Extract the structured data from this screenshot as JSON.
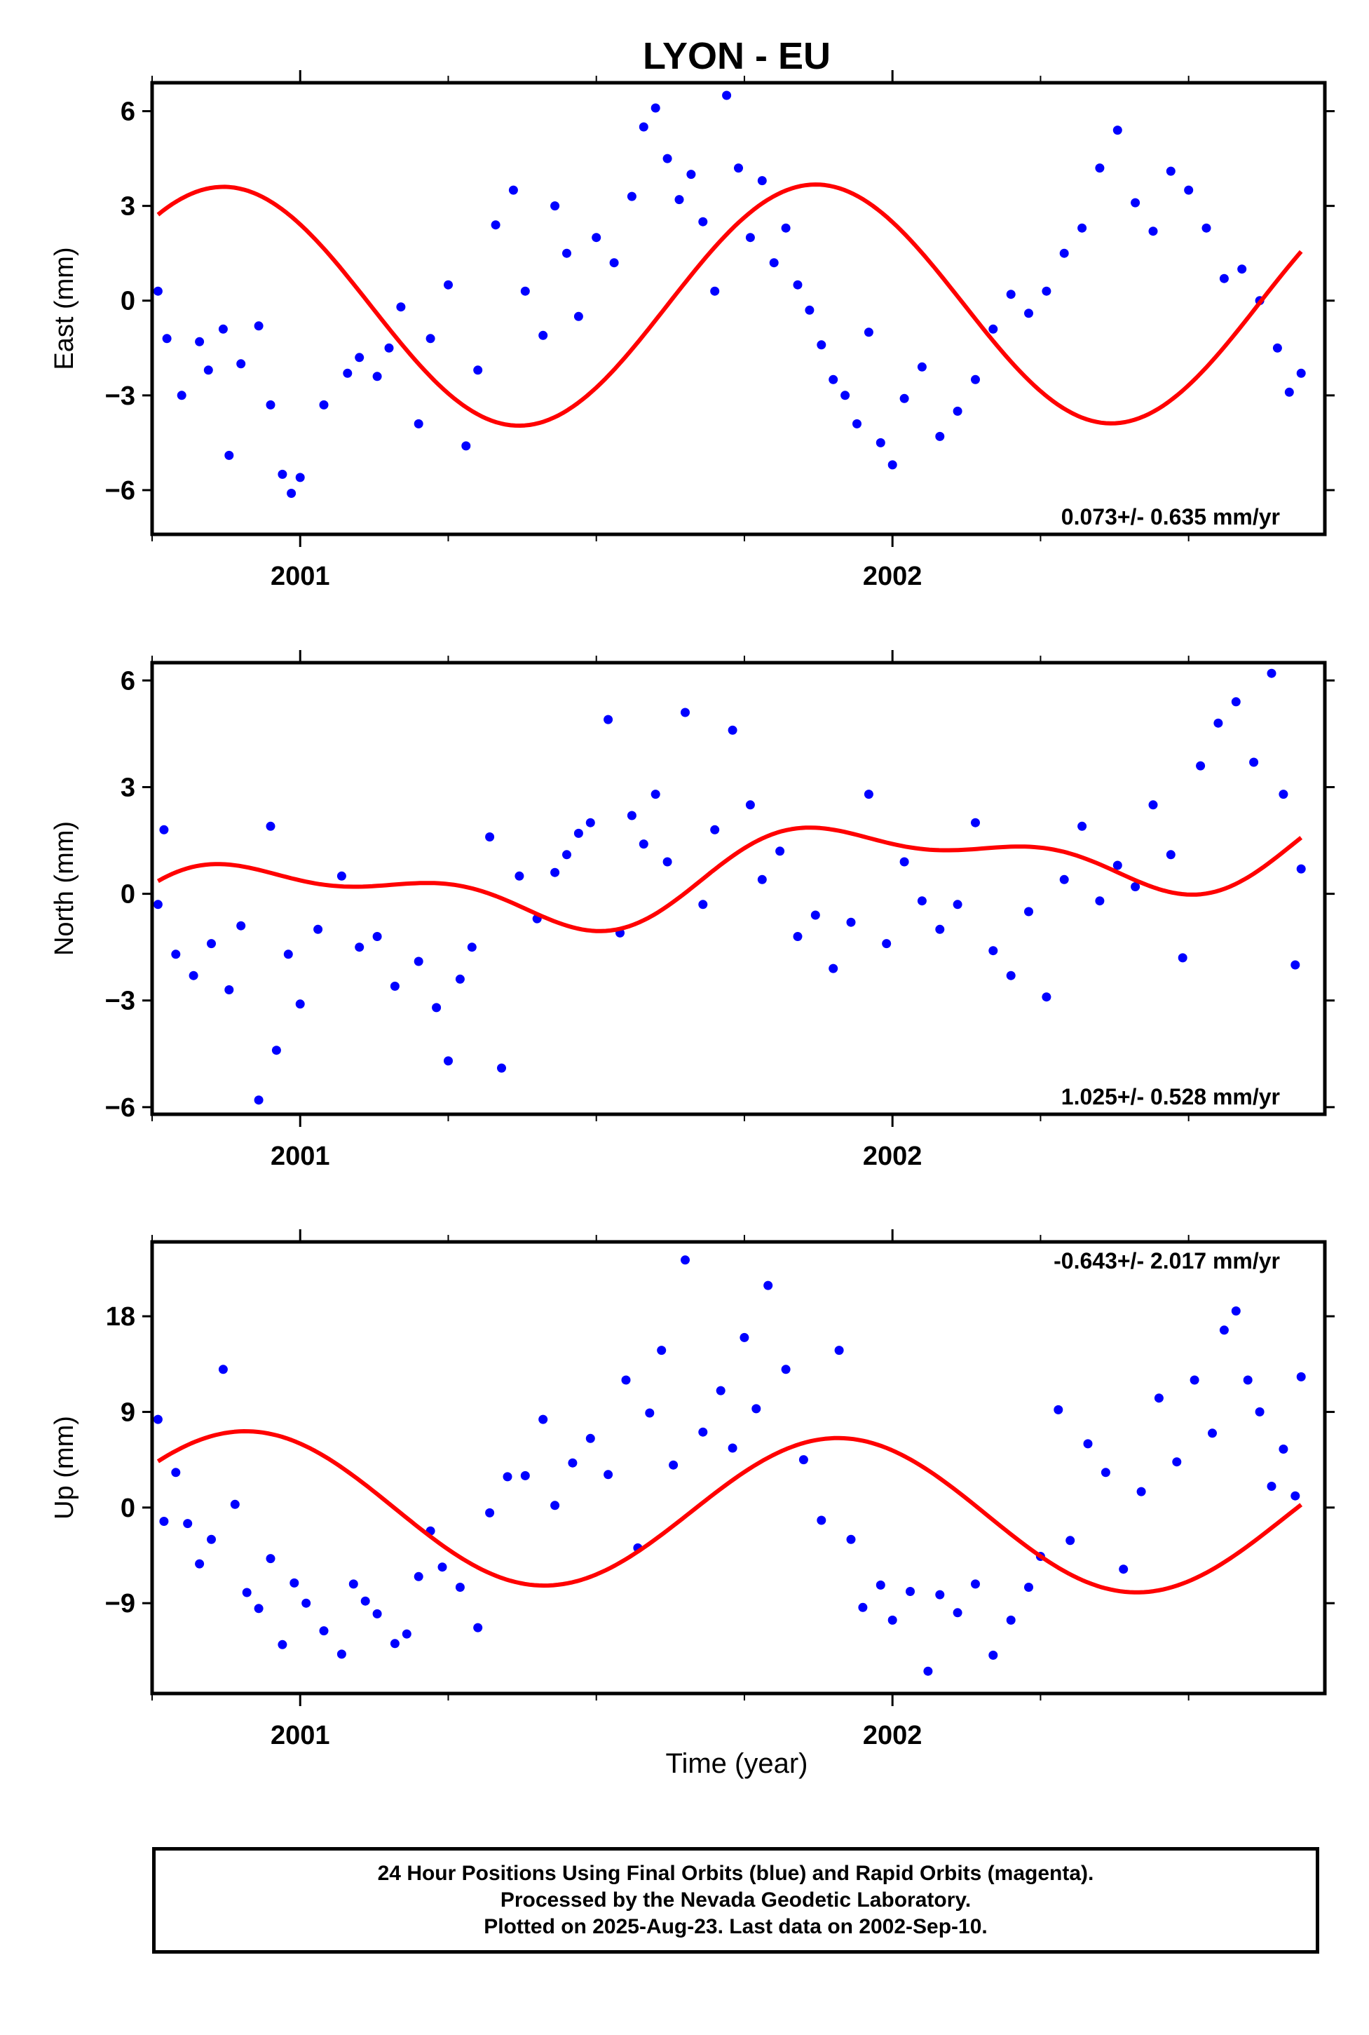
{
  "title": "LYON - EU",
  "xlabel": "Time (year)",
  "colors": {
    "points": "#0000ff",
    "fit": "#ff0000",
    "axes": "#000000"
  },
  "footer": {
    "line1": "24 Hour Positions Using Final Orbits (blue) and Rapid Orbits (magenta).",
    "line2": "Processed by the Nevada Geodetic Laboratory.",
    "line3": "Plotted on 2025-Aug-23. Last data on 2002-Sep-10."
  },
  "chart_data": [
    {
      "type": "scatter",
      "ylabel": "East (mm)",
      "rate_text": "0.073+/- 0.635 mm/yr",
      "rate_position": "bottom-right",
      "xlim": [
        2000.75,
        2002.73
      ],
      "ylim": [
        -7.4,
        6.9
      ],
      "x_ticks": [
        2001,
        2002
      ],
      "y_ticks": [
        -6,
        -3,
        0,
        3,
        6
      ],
      "x_range": [
        2000.76,
        2002.69
      ],
      "fit": {
        "amp_annual": 3.8,
        "phase_year": 2000.87,
        "amp_semi": 0.0,
        "semi_phase": 0,
        "offset": -0.15,
        "rate": 0.073
      },
      "series": [
        {
          "kind": "scatter",
          "color": "#0000ff",
          "points": [
            [
              2000.76,
              0.3
            ],
            [
              2000.775,
              -1.2
            ],
            [
              2000.8,
              -3.0
            ],
            [
              2000.83,
              -1.3
            ],
            [
              2000.845,
              -2.2
            ],
            [
              2000.87,
              -0.9
            ],
            [
              2000.88,
              -4.9
            ],
            [
              2000.9,
              -2.0
            ],
            [
              2000.93,
              -0.8
            ],
            [
              2000.95,
              -3.3
            ],
            [
              2000.97,
              -5.5
            ],
            [
              2000.985,
              -6.1
            ],
            [
              2001.0,
              -5.6
            ],
            [
              2001.04,
              -3.3
            ],
            [
              2001.08,
              -2.3
            ],
            [
              2001.1,
              -1.8
            ],
            [
              2001.13,
              -2.4
            ],
            [
              2001.15,
              -1.5
            ],
            [
              2001.17,
              -0.2
            ],
            [
              2001.2,
              -3.9
            ],
            [
              2001.22,
              -1.2
            ],
            [
              2001.25,
              0.5
            ],
            [
              2001.28,
              -4.6
            ],
            [
              2001.3,
              -2.2
            ],
            [
              2001.33,
              2.4
            ],
            [
              2001.36,
              3.5
            ],
            [
              2001.38,
              0.3
            ],
            [
              2001.41,
              -1.1
            ],
            [
              2001.43,
              3.0
            ],
            [
              2001.45,
              1.5
            ],
            [
              2001.47,
              -0.5
            ],
            [
              2001.5,
              2.0
            ],
            [
              2001.53,
              1.2
            ],
            [
              2001.56,
              3.3
            ],
            [
              2001.58,
              5.5
            ],
            [
              2001.6,
              6.1
            ],
            [
              2001.62,
              4.5
            ],
            [
              2001.64,
              3.2
            ],
            [
              2001.66,
              4.0
            ],
            [
              2001.68,
              2.5
            ],
            [
              2001.7,
              0.3
            ],
            [
              2001.72,
              6.5
            ],
            [
              2001.74,
              4.2
            ],
            [
              2001.76,
              2.0
            ],
            [
              2001.78,
              3.8
            ],
            [
              2001.8,
              1.2
            ],
            [
              2001.82,
              2.3
            ],
            [
              2001.84,
              0.5
            ],
            [
              2001.86,
              -0.3
            ],
            [
              2001.88,
              -1.4
            ],
            [
              2001.9,
              -2.5
            ],
            [
              2001.92,
              -3.0
            ],
            [
              2001.94,
              -3.9
            ],
            [
              2001.96,
              -1.0
            ],
            [
              2001.98,
              -4.5
            ],
            [
              2002.0,
              -5.2
            ],
            [
              2002.02,
              -3.1
            ],
            [
              2002.05,
              -2.1
            ],
            [
              2002.08,
              -4.3
            ],
            [
              2002.11,
              -3.5
            ],
            [
              2002.14,
              -2.5
            ],
            [
              2002.17,
              -0.9
            ],
            [
              2002.2,
              0.2
            ],
            [
              2002.23,
              -0.4
            ],
            [
              2002.26,
              0.3
            ],
            [
              2002.29,
              1.5
            ],
            [
              2002.32,
              2.3
            ],
            [
              2002.35,
              4.2
            ],
            [
              2002.38,
              5.4
            ],
            [
              2002.41,
              3.1
            ],
            [
              2002.44,
              2.2
            ],
            [
              2002.47,
              4.1
            ],
            [
              2002.5,
              3.5
            ],
            [
              2002.53,
              2.3
            ],
            [
              2002.56,
              0.7
            ],
            [
              2002.59,
              1.0
            ],
            [
              2002.62,
              0.0
            ],
            [
              2002.65,
              -1.5
            ],
            [
              2002.67,
              -2.9
            ],
            [
              2002.69,
              -2.3
            ]
          ]
        }
      ]
    },
    {
      "type": "scatter",
      "ylabel": "North (mm)",
      "rate_text": "1.025+/- 0.528 mm/yr",
      "rate_position": "bottom-right",
      "xlim": [
        2000.75,
        2002.73
      ],
      "ylim": [
        -6.2,
        6.5
      ],
      "x_ticks": [
        2001,
        2002
      ],
      "y_ticks": [
        -6,
        -3,
        0,
        3,
        6
      ],
      "x_range": [
        2000.76,
        2002.69
      ],
      "fit": {
        "amp_annual": 1.0,
        "phase_year": 2000.96,
        "amp_semi": 0.5,
        "semi_phase": 2.6,
        "offset": 0.35,
        "rate": 1.025
      },
      "series": [
        {
          "kind": "scatter",
          "color": "#0000ff",
          "points": [
            [
              2000.76,
              -0.3
            ],
            [
              2000.77,
              1.8
            ],
            [
              2000.79,
              -1.7
            ],
            [
              2000.82,
              -2.3
            ],
            [
              2000.85,
              -1.4
            ],
            [
              2000.88,
              -2.7
            ],
            [
              2000.9,
              -0.9
            ],
            [
              2000.93,
              -5.8
            ],
            [
              2000.95,
              1.9
            ],
            [
              2000.96,
              -4.4
            ],
            [
              2000.98,
              -1.7
            ],
            [
              2001.0,
              -3.1
            ],
            [
              2001.03,
              -1.0
            ],
            [
              2001.07,
              0.5
            ],
            [
              2001.1,
              -1.5
            ],
            [
              2001.13,
              -1.2
            ],
            [
              2001.16,
              -2.6
            ],
            [
              2001.2,
              -1.9
            ],
            [
              2001.23,
              -3.2
            ],
            [
              2001.25,
              -4.7
            ],
            [
              2001.27,
              -2.4
            ],
            [
              2001.29,
              -1.5
            ],
            [
              2001.32,
              1.6
            ],
            [
              2001.34,
              -4.9
            ],
            [
              2001.37,
              0.5
            ],
            [
              2001.4,
              -0.7
            ],
            [
              2001.43,
              0.6
            ],
            [
              2001.45,
              1.1
            ],
            [
              2001.47,
              1.7
            ],
            [
              2001.49,
              2.0
            ],
            [
              2001.52,
              4.9
            ],
            [
              2001.54,
              -1.1
            ],
            [
              2001.56,
              2.2
            ],
            [
              2001.58,
              1.4
            ],
            [
              2001.6,
              2.8
            ],
            [
              2001.62,
              0.9
            ],
            [
              2001.65,
              5.1
            ],
            [
              2001.68,
              -0.3
            ],
            [
              2001.7,
              1.8
            ],
            [
              2001.73,
              4.6
            ],
            [
              2001.76,
              2.5
            ],
            [
              2001.78,
              0.4
            ],
            [
              2001.81,
              1.2
            ],
            [
              2001.84,
              -1.2
            ],
            [
              2001.87,
              -0.6
            ],
            [
              2001.9,
              -2.1
            ],
            [
              2001.93,
              -0.8
            ],
            [
              2001.96,
              2.8
            ],
            [
              2001.99,
              -1.4
            ],
            [
              2002.02,
              0.9
            ],
            [
              2002.05,
              -0.2
            ],
            [
              2002.08,
              -1.0
            ],
            [
              2002.11,
              -0.3
            ],
            [
              2002.14,
              2.0
            ],
            [
              2002.17,
              -1.6
            ],
            [
              2002.2,
              -2.3
            ],
            [
              2002.23,
              -0.5
            ],
            [
              2002.26,
              -2.9
            ],
            [
              2002.29,
              0.4
            ],
            [
              2002.32,
              1.9
            ],
            [
              2002.35,
              -0.2
            ],
            [
              2002.38,
              0.8
            ],
            [
              2002.41,
              0.2
            ],
            [
              2002.44,
              2.5
            ],
            [
              2002.47,
              1.1
            ],
            [
              2002.49,
              -1.8
            ],
            [
              2002.52,
              3.6
            ],
            [
              2002.55,
              4.8
            ],
            [
              2002.58,
              5.4
            ],
            [
              2002.61,
              3.7
            ],
            [
              2002.64,
              6.2
            ],
            [
              2002.66,
              2.8
            ],
            [
              2002.68,
              -2.0
            ],
            [
              2002.69,
              0.7
            ]
          ]
        }
      ]
    },
    {
      "type": "scatter",
      "ylabel": "Up (mm)",
      "rate_text": "-0.643+/- 2.017 mm/yr",
      "rate_position": "top-right",
      "xlim": [
        2000.75,
        2002.73
      ],
      "ylim": [
        -17.5,
        25.0
      ],
      "x_ticks": [
        2001,
        2002
      ],
      "y_ticks": [
        -9,
        0,
        9,
        18
      ],
      "x_range": [
        2000.76,
        2002.69
      ],
      "fit": {
        "amp_annual": 7.1,
        "phase_year": 2000.91,
        "amp_semi": 0.0,
        "semi_phase": 0,
        "offset": -0.3,
        "rate": -0.643
      },
      "series": [
        {
          "kind": "scatter",
          "color": "#0000ff",
          "points": [
            [
              2000.76,
              8.3
            ],
            [
              2000.77,
              -1.3
            ],
            [
              2000.79,
              3.3
            ],
            [
              2000.81,
              -1.5
            ],
            [
              2000.83,
              -5.3
            ],
            [
              2000.85,
              -3.0
            ],
            [
              2000.87,
              13.0
            ],
            [
              2000.89,
              0.3
            ],
            [
              2000.91,
              -8.0
            ],
            [
              2000.93,
              -9.5
            ],
            [
              2000.95,
              -4.8
            ],
            [
              2000.97,
              -12.9
            ],
            [
              2000.99,
              -7.1
            ],
            [
              2001.01,
              -9.0
            ],
            [
              2001.04,
              -11.6
            ],
            [
              2001.07,
              -13.8
            ],
            [
              2001.09,
              -7.2
            ],
            [
              2001.11,
              -8.8
            ],
            [
              2001.13,
              -10.0
            ],
            [
              2001.16,
              -12.8
            ],
            [
              2001.18,
              -11.9
            ],
            [
              2001.2,
              -6.5
            ],
            [
              2001.22,
              -2.2
            ],
            [
              2001.24,
              -5.6
            ],
            [
              2001.27,
              -7.5
            ],
            [
              2001.3,
              -11.3
            ],
            [
              2001.32,
              -0.5
            ],
            [
              2001.35,
              2.9
            ],
            [
              2001.38,
              3.0
            ],
            [
              2001.41,
              8.3
            ],
            [
              2001.43,
              0.2
            ],
            [
              2001.46,
              4.2
            ],
            [
              2001.49,
              6.5
            ],
            [
              2001.52,
              3.1
            ],
            [
              2001.55,
              12.0
            ],
            [
              2001.57,
              -3.8
            ],
            [
              2001.59,
              8.9
            ],
            [
              2001.61,
              14.8
            ],
            [
              2001.63,
              4.0
            ],
            [
              2001.65,
              23.3
            ],
            [
              2001.68,
              7.1
            ],
            [
              2001.71,
              11.0
            ],
            [
              2001.73,
              5.6
            ],
            [
              2001.75,
              16.0
            ],
            [
              2001.77,
              9.3
            ],
            [
              2001.79,
              20.9
            ],
            [
              2001.82,
              13.0
            ],
            [
              2001.85,
              4.5
            ],
            [
              2001.88,
              -1.2
            ],
            [
              2001.91,
              14.8
            ],
            [
              2001.93,
              -3.0
            ],
            [
              2001.95,
              -9.4
            ],
            [
              2001.98,
              -7.3
            ],
            [
              2002.0,
              -10.6
            ],
            [
              2002.03,
              -7.9
            ],
            [
              2002.06,
              -15.4
            ],
            [
              2002.08,
              -8.2
            ],
            [
              2002.11,
              -9.9
            ],
            [
              2002.14,
              -7.2
            ],
            [
              2002.17,
              -13.9
            ],
            [
              2002.2,
              -10.6
            ],
            [
              2002.23,
              -7.5
            ],
            [
              2002.25,
              -4.6
            ],
            [
              2002.28,
              9.2
            ],
            [
              2002.3,
              -3.1
            ],
            [
              2002.33,
              6.0
            ],
            [
              2002.36,
              3.3
            ],
            [
              2002.39,
              -5.8
            ],
            [
              2002.42,
              1.5
            ],
            [
              2002.45,
              10.3
            ],
            [
              2002.48,
              4.3
            ],
            [
              2002.51,
              12.0
            ],
            [
              2002.54,
              7.0
            ],
            [
              2002.56,
              16.7
            ],
            [
              2002.58,
              18.5
            ],
            [
              2002.6,
              12.0
            ],
            [
              2002.62,
              9.0
            ],
            [
              2002.64,
              2.0
            ],
            [
              2002.66,
              5.5
            ],
            [
              2002.68,
              1.1
            ],
            [
              2002.69,
              12.3
            ]
          ]
        }
      ]
    }
  ]
}
